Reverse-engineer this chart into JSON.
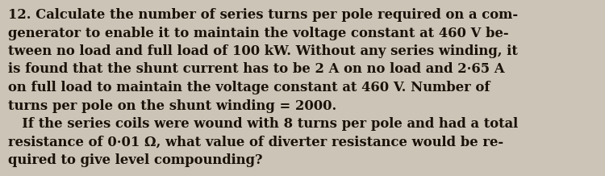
{
  "background_color": "#ccc4b6",
  "text_color": "#1a1208",
  "fontsize": 11.8,
  "lines": [
    {
      "text": "12. Calculate the number of series turns per pole required on a com-",
      "indent": false
    },
    {
      "text": "generator to enable it to maintain the voltage constant at 460 V be-",
      "indent": true
    },
    {
      "text": "tween no load and full load of 100 kW. Without any series winding, it",
      "indent": true
    },
    {
      "text": "is found that the shunt current has to be 2 A on no load and 2·65 A",
      "indent": true
    },
    {
      "text": "on full load to maintain the voltage constant at 460 V. Number of",
      "indent": true
    },
    {
      "text": "turns per pole on the shunt winding = 2000.",
      "indent": true
    },
    {
      "text": "   If the series coils were wound with 8 turns per pole and had a total",
      "indent": true
    },
    {
      "text": "resistance of 0·01 Ω, what value of diverter resistance would be re-",
      "indent": true
    },
    {
      "text": "quired to give level compounding?",
      "indent": true
    }
  ],
  "figwidth": 7.5,
  "figheight": 2.18,
  "dpi": 100
}
